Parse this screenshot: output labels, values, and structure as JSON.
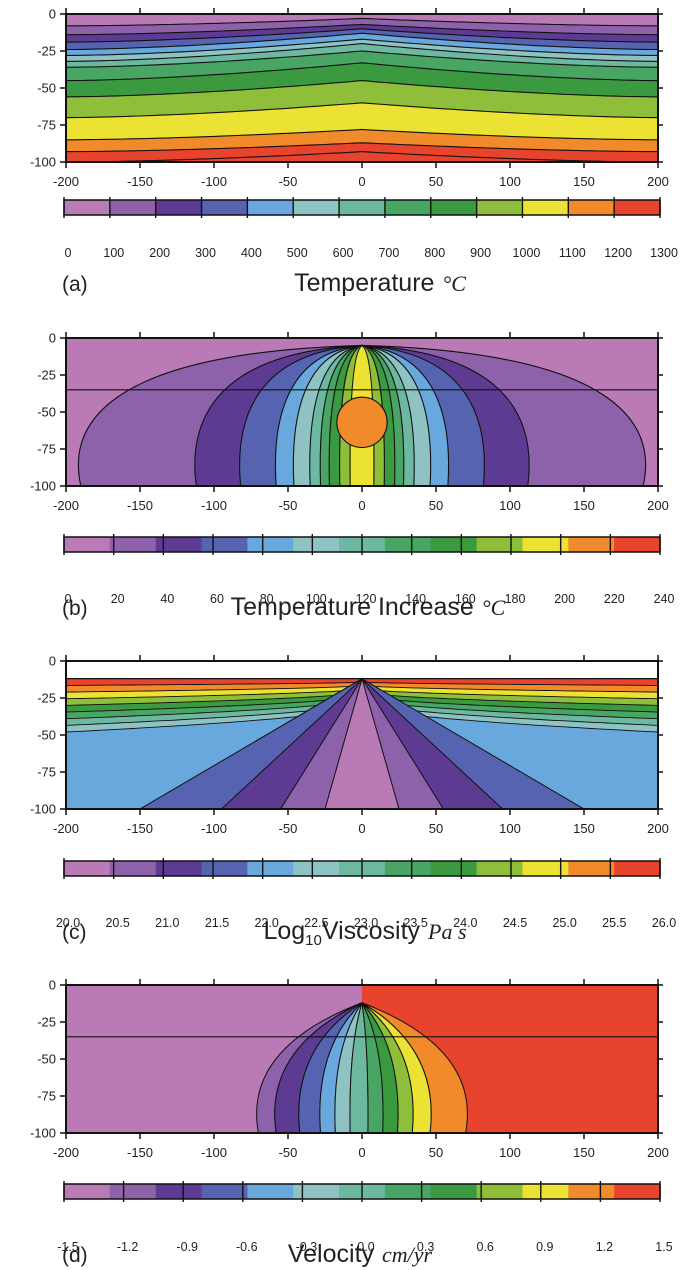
{
  "chart_data": [
    {
      "type": "heatmap",
      "panel": "(a)",
      "quantity": "Temperature",
      "unit": "°C",
      "x_ticks": [
        -200,
        -150,
        -100,
        -50,
        0,
        50,
        100,
        150,
        200
      ],
      "y_ticks": [
        0,
        -25,
        -50,
        -75,
        -100
      ],
      "xlim": [
        -200,
        200
      ],
      "ylim": [
        -100,
        0
      ],
      "colorbar_ticks": [
        "0",
        "100",
        "200",
        "300",
        "400",
        "500",
        "600",
        "700",
        "800",
        "900",
        "1000",
        "1100",
        "1200",
        "1300"
      ],
      "colorbar_colors": [
        "#b97ab5",
        "#8e62aa",
        "#5d3b93",
        "#5663b0",
        "#68a8dc",
        "#8fc3c3",
        "#6cb8a0",
        "#48a564",
        "#3b9a3f",
        "#8fbf3a",
        "#ece233",
        "#f08a2a",
        "#e8432c"
      ],
      "contour_levels": [
        0,
        100,
        200,
        300,
        400,
        500,
        600,
        700,
        800,
        900,
        1000,
        1100,
        1200,
        1300
      ],
      "contour_depths_at_x0": [
        -3,
        -7,
        -10,
        -13,
        -17,
        -20,
        -25,
        -33,
        -45,
        -60,
        -78,
        -87,
        -93
      ],
      "contour_depths_at_x200": [
        -8,
        -14,
        -19,
        -24,
        -28,
        -32,
        -36,
        -45,
        -56,
        -70,
        -85,
        -93,
        -100
      ]
    },
    {
      "type": "heatmap",
      "panel": "(b)",
      "quantity": "Temperature Increase",
      "unit": "°C",
      "x_ticks": [
        -200,
        -150,
        -100,
        -50,
        0,
        50,
        100,
        150,
        200
      ],
      "y_ticks": [
        0,
        -25,
        -50,
        -75,
        -100
      ],
      "xlim": [
        -200,
        200
      ],
      "ylim": [
        -100,
        0
      ],
      "colorbar_ticks": [
        "0",
        "20",
        "40",
        "60",
        "80",
        "100",
        "120",
        "140",
        "160",
        "180",
        "200",
        "220",
        "240"
      ],
      "colorbar_colors": [
        "#b97ab5",
        "#8e62aa",
        "#5d3b93",
        "#5663b0",
        "#68a8dc",
        "#8fc3c3",
        "#6cb8a0",
        "#48a564",
        "#3b9a3f",
        "#8fbf3a",
        "#ece233",
        "#f08a2a",
        "#e8432c"
      ],
      "contour_levels": [
        20,
        40,
        60,
        80,
        100,
        120,
        140,
        160,
        180,
        200
      ],
      "contour_x_at_bottom": [
        190,
        112,
        82,
        58,
        46,
        35,
        28,
        22,
        15,
        8
      ],
      "hot_core": {
        "x_center": 0,
        "y_center": -57,
        "x_half_width": 17,
        "y_half_height": 17,
        "value_range": [
          200,
          220
        ]
      },
      "reference_line_depth": -35
    },
    {
      "type": "heatmap",
      "panel": "(c)",
      "quantity": "Log10 Viscosity",
      "unit": "Pa s",
      "x_ticks": [
        -200,
        -150,
        -100,
        -50,
        0,
        50,
        100,
        150,
        200
      ],
      "y_ticks": [
        0,
        -25,
        -50,
        -75,
        -100
      ],
      "xlim": [
        -200,
        200
      ],
      "ylim": [
        -100,
        0
      ],
      "colorbar_ticks": [
        "20.0",
        "20.5",
        "21.0",
        "21.5",
        "22.0",
        "22.5",
        "23.0",
        "23.5",
        "24.0",
        "24.5",
        "25.0",
        "25.5",
        "26.0"
      ],
      "colorbar_colors": [
        "#b97ab5",
        "#8e62aa",
        "#5d3b93",
        "#5663b0",
        "#68a8dc",
        "#8fc3c3",
        "#6cb8a0",
        "#48a564",
        "#3b9a3f",
        "#8fbf3a",
        "#ece233",
        "#f08a2a",
        "#e8432c"
      ],
      "upper_layer_top_depth": -12,
      "upper_layer_colors_top_to_bottom": [
        "#e8432c",
        "#f08a2a",
        "#ece233",
        "#8fbf3a",
        "#3b9a3f",
        "#48a564",
        "#6cb8a0",
        "#8fc3c3"
      ],
      "wedge_apex": {
        "x": 0,
        "y": -12
      },
      "wedge_colors_outer_to_inner": [
        "#68a8dc",
        "#5663b0",
        "#5d3b93",
        "#8e62aa",
        "#b97ab5"
      ]
    },
    {
      "type": "heatmap",
      "panel": "(d)",
      "quantity": "Velocity",
      "unit": "cm/yr",
      "x_ticks": [
        -200,
        -150,
        -100,
        -50,
        0,
        50,
        100,
        150,
        200
      ],
      "y_ticks": [
        0,
        -25,
        -50,
        -75,
        -100
      ],
      "xlim": [
        -200,
        200
      ],
      "ylim": [
        -100,
        0
      ],
      "colorbar_ticks": [
        "-1.5",
        "-1.2",
        "-0.9",
        "-0.6",
        "-0.3",
        "0.0",
        "0.3",
        "0.6",
        "0.9",
        "1.2",
        "1.5"
      ],
      "colorbar_colors": [
        "#b97ab5",
        "#8e62aa",
        "#5d3b93",
        "#5663b0",
        "#68a8dc",
        "#8fc3c3",
        "#6cb8a0",
        "#48a564",
        "#3b9a3f",
        "#8fbf3a",
        "#ece233",
        "#f08a2a",
        "#e8432c"
      ],
      "left_plate_velocity": -1.5,
      "right_plate_velocity": 1.5,
      "apex": {
        "x": 0,
        "y": -12
      },
      "fan_x_at_bottom": [
        -70,
        -58,
        -42,
        -28,
        -18,
        -8,
        4,
        14,
        24,
        34,
        46,
        70
      ],
      "fan_colors": [
        "#8e62aa",
        "#5d3b93",
        "#5663b0",
        "#68a8dc",
        "#8fc3c3",
        "#6cb8a0",
        "#48a564",
        "#3b9a3f",
        "#8fbf3a",
        "#ece233",
        "#f08a2a"
      ],
      "reference_line_depth": -35
    }
  ]
}
